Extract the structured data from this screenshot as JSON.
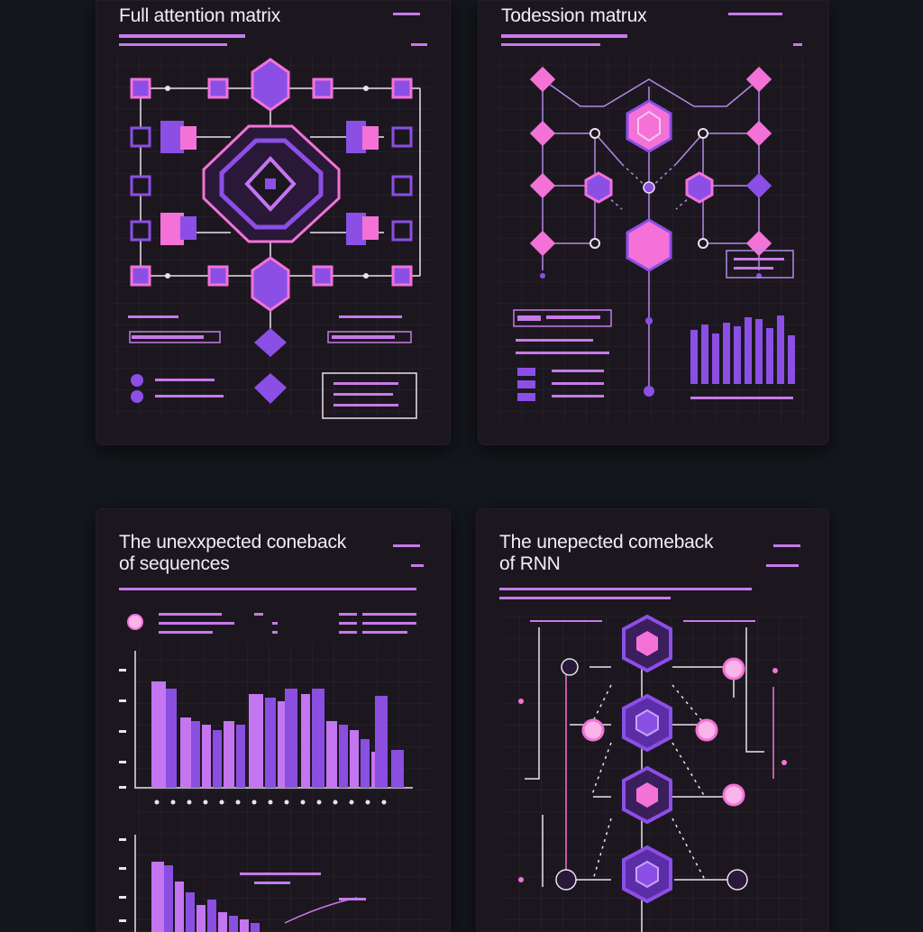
{
  "cards": [
    {
      "title_lines": [
        "Full attention matrix"
      ],
      "colors": {
        "accent": "#8b4fe6",
        "pink": "#f472d8",
        "line": "#e8e3ee",
        "grid": "#2a2530"
      }
    },
    {
      "title_lines": [
        "Todession matrux"
      ],
      "colors": {
        "accent": "#8b4fe6",
        "pink": "#f472d8",
        "line": "#b48ae8"
      }
    },
    {
      "title_lines": [
        "The unexxpected coneback",
        "of sequences"
      ],
      "colors": {
        "bar_a": "#c475f0",
        "bar_b": "#8a4fe0",
        "axis": "#e8e3ee"
      }
    },
    {
      "title_lines": [
        "The unepected comeback",
        "of RNN"
      ],
      "colors": {
        "accent": "#8b4fe6",
        "pink": "#f472d8",
        "line": "#e8e3ee"
      }
    }
  ]
}
